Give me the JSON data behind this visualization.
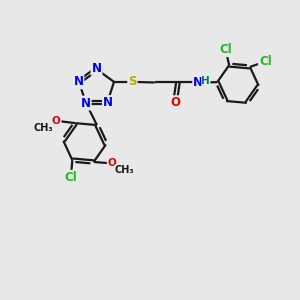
{
  "background_color": "#e8e8e8",
  "bond_color": "#1a1a1a",
  "bond_width": 1.6,
  "atom_colors": {
    "N": "#0000ee",
    "O": "#dd0000",
    "S": "#bbaa00",
    "Cl": "#22bb22",
    "H": "#007777",
    "C": "#1a1a1a"
  },
  "font_size_atom": 8.5,
  "font_size_small": 7.5
}
